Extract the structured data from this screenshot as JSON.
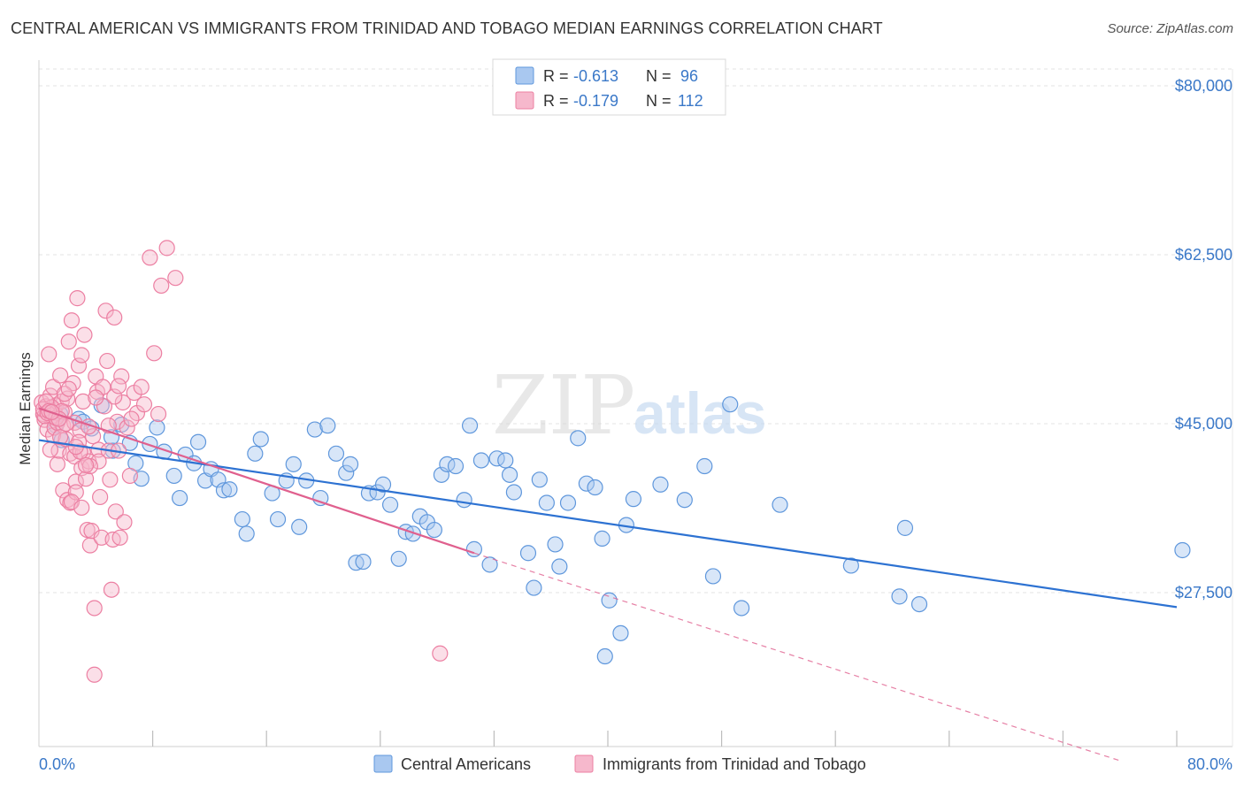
{
  "title": "CENTRAL AMERICAN VS IMMIGRANTS FROM TRINIDAD AND TOBAGO MEDIAN EARNINGS CORRELATION CHART",
  "source": "Source: ZipAtlas.com",
  "watermark": {
    "zip": "ZIP",
    "atlas": "atlas"
  },
  "colors": {
    "blue_fill": "#a9c8f0",
    "blue_stroke": "#5f97dc",
    "blue_line": "#2d72d2",
    "pink_fill": "#f6b8cc",
    "pink_stroke": "#ec7fa2",
    "pink_line": "#e0608e",
    "grid": "#e3e3e3",
    "axis_text": "#3a78c8"
  },
  "stats": {
    "rows": [
      {
        "r_label": "R =",
        "r_value": "-0.613",
        "n_label": "N =",
        "n_value": "96"
      },
      {
        "r_label": "R =",
        "r_value": "-0.179",
        "n_label": "N =",
        "n_value": "112"
      }
    ]
  },
  "chart_data": {
    "type": "scatter",
    "title": "CENTRAL AMERICAN VS IMMIGRANTS FROM TRINIDAD AND TOBAGO MEDIAN EARNINGS CORRELATION CHART",
    "xlabel": "",
    "ylabel": "Median Earnings",
    "xlim": [
      0,
      80
    ],
    "ylim": [
      10000,
      82500
    ],
    "x_tick_labels": {
      "min": "0.0%",
      "max": "80.0%"
    },
    "y_ticks": [
      {
        "value": 80000,
        "label": "$80,000"
      },
      {
        "value": 62500,
        "label": "$62,500"
      },
      {
        "value": 45000,
        "label": "$45,000"
      },
      {
        "value": 27500,
        "label": "$27,500"
      }
    ],
    "grid": true,
    "legend_position": "bottom",
    "series": [
      {
        "name": "Central Americans",
        "color": "blue",
        "r": -0.613,
        "n": 96,
        "trend": {
          "x1": 0,
          "y1": 43300,
          "x2": 80,
          "y2": 26000,
          "dashed": false
        },
        "points": [
          [
            1.2,
            44800
          ],
          [
            1.5,
            46000
          ],
          [
            1.6,
            43300
          ],
          [
            2.8,
            45500
          ],
          [
            3.1,
            45200
          ],
          [
            3.7,
            44500
          ],
          [
            4.4,
            46900
          ],
          [
            5.1,
            43600
          ],
          [
            5.2,
            42200
          ],
          [
            5.8,
            44900
          ],
          [
            6.4,
            43000
          ],
          [
            6.8,
            40900
          ],
          [
            7.2,
            39300
          ],
          [
            7.8,
            42900
          ],
          [
            8.3,
            44600
          ],
          [
            8.8,
            42100
          ],
          [
            9.5,
            39600
          ],
          [
            9.9,
            37300
          ],
          [
            10.3,
            41800
          ],
          [
            10.9,
            40900
          ],
          [
            11.2,
            43100
          ],
          [
            11.7,
            39100
          ],
          [
            12.1,
            40300
          ],
          [
            12.6,
            39200
          ],
          [
            13.0,
            38100
          ],
          [
            13.4,
            38200
          ],
          [
            14.3,
            35100
          ],
          [
            14.6,
            33600
          ],
          [
            15.2,
            41900
          ],
          [
            15.6,
            43400
          ],
          [
            16.4,
            37800
          ],
          [
            16.8,
            35100
          ],
          [
            17.4,
            39100
          ],
          [
            17.9,
            40800
          ],
          [
            18.3,
            34300
          ],
          [
            18.8,
            39100
          ],
          [
            19.4,
            44400
          ],
          [
            19.8,
            37300
          ],
          [
            20.3,
            44800
          ],
          [
            20.9,
            41900
          ],
          [
            21.6,
            39900
          ],
          [
            21.9,
            40800
          ],
          [
            22.3,
            30600
          ],
          [
            22.8,
            30700
          ],
          [
            23.2,
            37800
          ],
          [
            23.8,
            37900
          ],
          [
            24.2,
            38700
          ],
          [
            24.7,
            36600
          ],
          [
            25.3,
            31000
          ],
          [
            25.8,
            33800
          ],
          [
            26.3,
            33600
          ],
          [
            26.8,
            35400
          ],
          [
            27.3,
            34800
          ],
          [
            27.8,
            34000
          ],
          [
            28.3,
            39700
          ],
          [
            28.7,
            40800
          ],
          [
            29.3,
            40600
          ],
          [
            29.9,
            37100
          ],
          [
            30.3,
            44800
          ],
          [
            30.6,
            32000
          ],
          [
            31.1,
            41200
          ],
          [
            31.7,
            30400
          ],
          [
            32.2,
            41400
          ],
          [
            32.8,
            41200
          ],
          [
            33.1,
            39700
          ],
          [
            33.4,
            37900
          ],
          [
            34.4,
            31600
          ],
          [
            34.8,
            28000
          ],
          [
            35.2,
            39200
          ],
          [
            35.7,
            36800
          ],
          [
            36.3,
            32500
          ],
          [
            36.6,
            30200
          ],
          [
            37.2,
            36800
          ],
          [
            37.9,
            43500
          ],
          [
            38.5,
            38800
          ],
          [
            39.1,
            38400
          ],
          [
            39.6,
            33100
          ],
          [
            40.1,
            26700
          ],
          [
            40.9,
            23300
          ],
          [
            41.3,
            34500
          ],
          [
            41.8,
            37200
          ],
          [
            43.7,
            38700
          ],
          [
            45.4,
            37100
          ],
          [
            46.8,
            40600
          ],
          [
            47.4,
            29200
          ],
          [
            48.6,
            47000
          ],
          [
            49.4,
            25900
          ],
          [
            52.1,
            36600
          ],
          [
            57.1,
            30300
          ],
          [
            60.5,
            27100
          ],
          [
            60.9,
            34200
          ],
          [
            61.9,
            26300
          ],
          [
            80.4,
            31900
          ],
          [
            39.8,
            20900
          ]
        ]
      },
      {
        "name": "Immigrants from Trinidad and Tobago",
        "color": "pink",
        "r": -0.179,
        "n": 112,
        "trend": {
          "x1": 0,
          "y1": 46600,
          "x2": 30.6,
          "y2": 31600,
          "dashed": false,
          "extension": {
            "x1": 30.6,
            "y1": 31600,
            "x2": 76.2,
            "y2": 10000,
            "dashed": true
          }
        },
        "points": [
          [
            0.2,
            47200
          ],
          [
            0.3,
            46000
          ],
          [
            0.4,
            45400
          ],
          [
            0.5,
            46800
          ],
          [
            0.6,
            44400
          ],
          [
            0.7,
            52200
          ],
          [
            0.8,
            47900
          ],
          [
            0.9,
            45800
          ],
          [
            1.0,
            43800
          ],
          [
            1.0,
            48800
          ],
          [
            1.1,
            46400
          ],
          [
            1.1,
            44600
          ],
          [
            1.2,
            46900
          ],
          [
            1.3,
            45100
          ],
          [
            1.3,
            40800
          ],
          [
            1.4,
            42200
          ],
          [
            1.5,
            50000
          ],
          [
            1.6,
            47300
          ],
          [
            1.7,
            44800
          ],
          [
            1.7,
            38100
          ],
          [
            1.8,
            46200
          ],
          [
            1.9,
            43400
          ],
          [
            2.0,
            37100
          ],
          [
            2.1,
            53500
          ],
          [
            2.2,
            41900
          ],
          [
            2.2,
            36800
          ],
          [
            2.3,
            55700
          ],
          [
            2.4,
            49200
          ],
          [
            2.5,
            45100
          ],
          [
            2.5,
            41600
          ],
          [
            2.6,
            39000
          ],
          [
            2.6,
            37900
          ],
          [
            2.7,
            58000
          ],
          [
            2.8,
            51000
          ],
          [
            2.9,
            44300
          ],
          [
            3.0,
            40400
          ],
          [
            3.0,
            52100
          ],
          [
            3.1,
            47300
          ],
          [
            3.1,
            42000
          ],
          [
            3.2,
            54200
          ],
          [
            3.3,
            39300
          ],
          [
            3.4,
            34000
          ],
          [
            3.5,
            41100
          ],
          [
            3.6,
            32400
          ],
          [
            3.7,
            33900
          ],
          [
            3.8,
            43700
          ],
          [
            3.9,
            25900
          ],
          [
            3.9,
            19000
          ],
          [
            4.0,
            49900
          ],
          [
            4.1,
            48300
          ],
          [
            4.2,
            42300
          ],
          [
            4.3,
            37400
          ],
          [
            4.4,
            33200
          ],
          [
            4.5,
            48800
          ],
          [
            4.6,
            46800
          ],
          [
            4.7,
            56700
          ],
          [
            4.8,
            51500
          ],
          [
            4.9,
            42200
          ],
          [
            5.0,
            39200
          ],
          [
            5.1,
            27800
          ],
          [
            5.2,
            33000
          ],
          [
            5.3,
            56000
          ],
          [
            5.4,
            35900
          ],
          [
            5.5,
            45200
          ],
          [
            5.6,
            42200
          ],
          [
            5.7,
            33200
          ],
          [
            5.8,
            49900
          ],
          [
            5.9,
            47200
          ],
          [
            6.0,
            34800
          ],
          [
            6.2,
            44600
          ],
          [
            6.4,
            39600
          ],
          [
            6.7,
            48200
          ],
          [
            6.9,
            46100
          ],
          [
            7.2,
            48800
          ],
          [
            7.4,
            47000
          ],
          [
            7.8,
            62200
          ],
          [
            8.1,
            52300
          ],
          [
            8.4,
            46000
          ],
          [
            8.6,
            59300
          ],
          [
            9.0,
            63200
          ],
          [
            9.6,
            60100
          ],
          [
            28.2,
            21200
          ],
          [
            0.4,
            45800
          ],
          [
            0.9,
            46700
          ],
          [
            1.5,
            43600
          ],
          [
            2.0,
            47600
          ],
          [
            2.8,
            43100
          ],
          [
            3.5,
            44700
          ],
          [
            4.2,
            41100
          ],
          [
            0.3,
            46500
          ],
          [
            0.6,
            46100
          ],
          [
            1.8,
            48100
          ],
          [
            3.6,
            40600
          ],
          [
            5.3,
            47800
          ],
          [
            0.8,
            42300
          ],
          [
            2.3,
            36900
          ],
          [
            1.2,
            45600
          ],
          [
            0.5,
            47300
          ],
          [
            1.6,
            46300
          ],
          [
            2.9,
            42100
          ],
          [
            4.9,
            44800
          ],
          [
            3.3,
            40700
          ],
          [
            0.7,
            46300
          ],
          [
            1.9,
            45000
          ],
          [
            2.6,
            42600
          ],
          [
            4.0,
            47700
          ],
          [
            5.6,
            48900
          ],
          [
            6.5,
            45500
          ],
          [
            3.0,
            36300
          ],
          [
            2.1,
            48600
          ],
          [
            1.4,
            45500
          ],
          [
            0.9,
            46200
          ]
        ]
      }
    ]
  }
}
